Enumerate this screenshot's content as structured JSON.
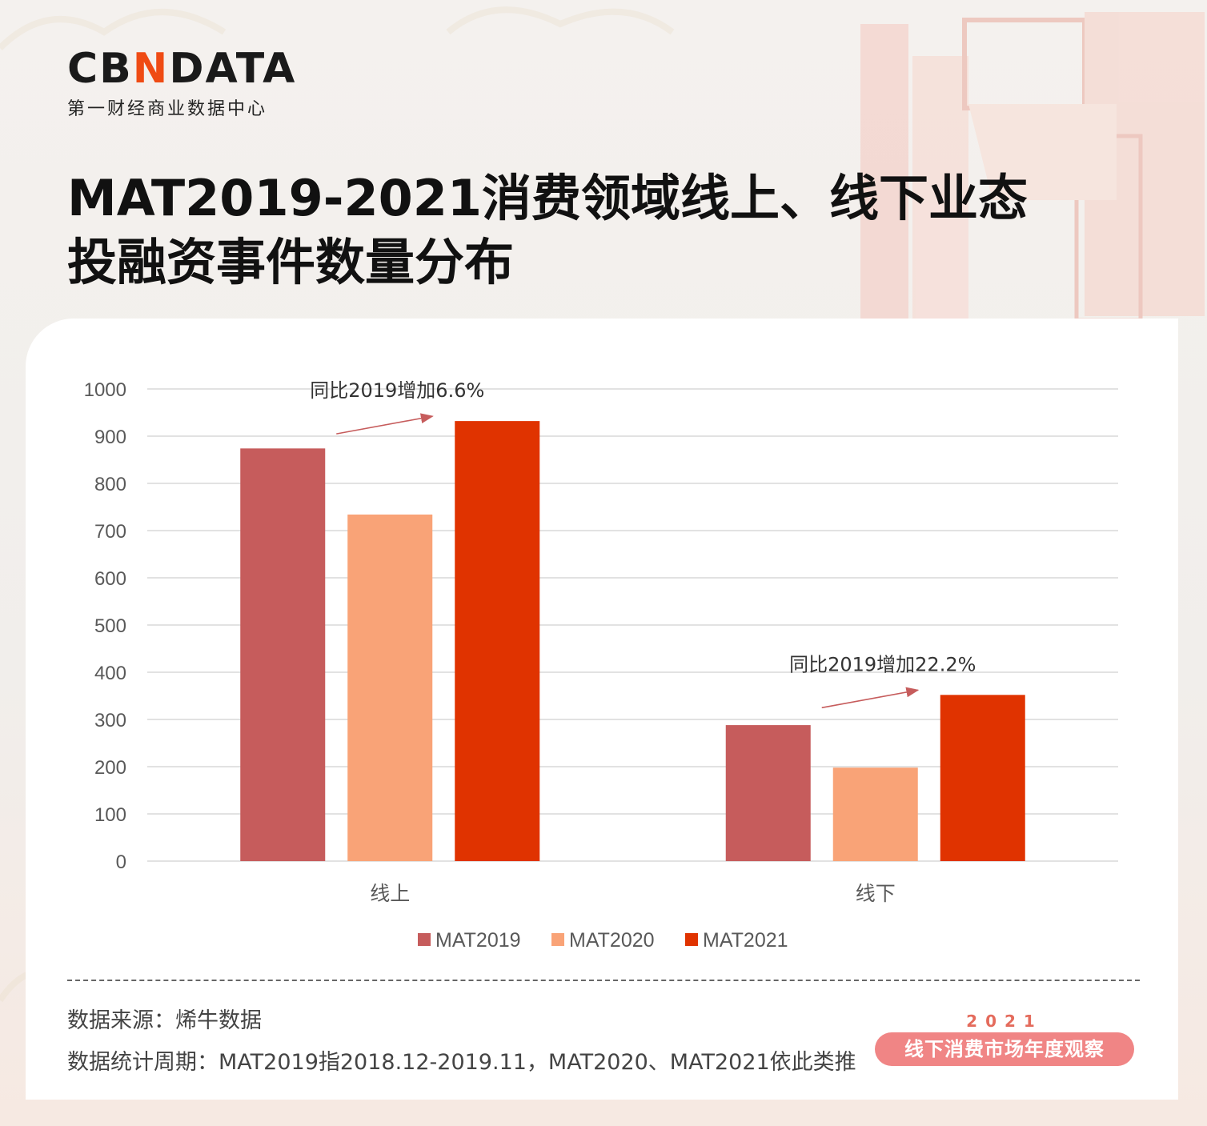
{
  "brand": {
    "logo_prefix": "CB",
    "logo_mark": "N",
    "logo_suffix": "DATA",
    "subtitle": "第一财经商业数据中心"
  },
  "title": "MAT2019-2021消费领域线上、线下业态投融资事件数量分布",
  "chart_data": {
    "type": "bar",
    "categories": [
      "线上",
      "线下"
    ],
    "series": [
      {
        "name": "MAT2019",
        "values": [
          874,
          288
        ],
        "color": "#c65c5c"
      },
      {
        "name": "MAT2020",
        "values": [
          734,
          198
        ],
        "color": "#f9a377"
      },
      {
        "name": "MAT2021",
        "values": [
          932,
          352
        ],
        "color": "#e03300"
      }
    ],
    "ylim": [
      0,
      1000
    ],
    "yticks": [
      0,
      100,
      200,
      300,
      400,
      500,
      600,
      700,
      800,
      900,
      1000
    ],
    "grid": true,
    "legend": "bottom",
    "annotations": [
      {
        "text": "同比2019增加6.6%",
        "category": 0
      },
      {
        "text": "同比2019增加22.2%",
        "category": 1
      }
    ],
    "annotation_color": "#c65c5c"
  },
  "footer": {
    "source": "数据来源：烯牛数据",
    "period": "数据统计周期：MAT2019指2018.12-2019.11，MAT2020、MAT2021依此类推"
  },
  "badge": {
    "year": "2021",
    "label": "线下消费市场年度观察"
  }
}
